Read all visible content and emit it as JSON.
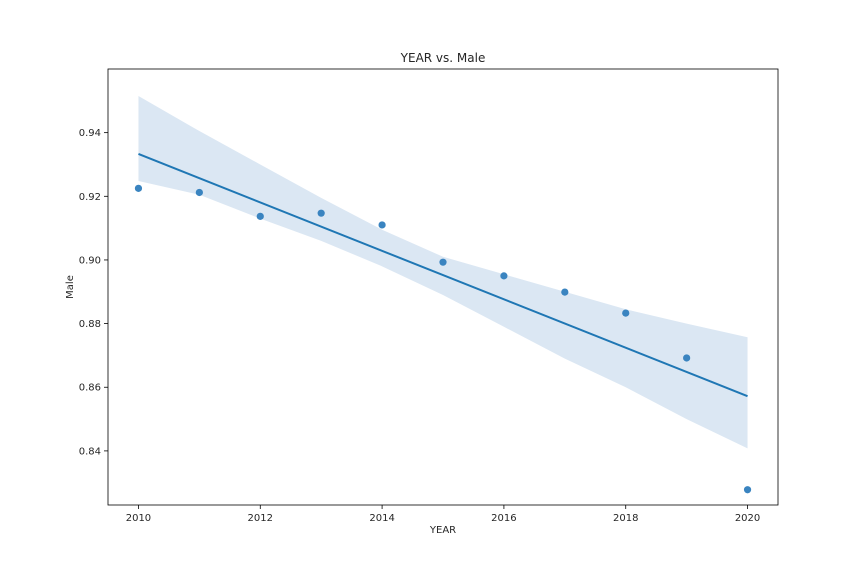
{
  "chart_data": {
    "type": "scatter",
    "title": "YEAR vs. Male",
    "xlabel": "YEAR",
    "ylabel": "Male",
    "xlim": [
      2009.5,
      2020.5
    ],
    "ylim": [
      0.823,
      0.96
    ],
    "xticks": [
      2010,
      2012,
      2014,
      2016,
      2018,
      2020
    ],
    "yticks": [
      0.84,
      0.86,
      0.88,
      0.9,
      0.92,
      0.94
    ],
    "ytick_labels": [
      "0.84",
      "0.86",
      "0.88",
      "0.90",
      "0.92",
      "0.94"
    ],
    "grid": false,
    "points": {
      "x": [
        2010,
        2011,
        2012,
        2013,
        2014,
        2015,
        2016,
        2017,
        2018,
        2019,
        2020
      ],
      "y": [
        0.9225,
        0.9212,
        0.9137,
        0.9147,
        0.911,
        0.8993,
        0.895,
        0.8899,
        0.8833,
        0.8692,
        0.8278
      ]
    },
    "regression": {
      "x": [
        2010,
        2020
      ],
      "y": [
        0.9333,
        0.8572
      ]
    },
    "confidence_band": {
      "x": [
        2010,
        2011,
        2012,
        2013,
        2014,
        2015,
        2016,
        2017,
        2018,
        2019,
        2020
      ],
      "upper": [
        0.9515,
        0.9405,
        0.93,
        0.9195,
        0.9095,
        0.901,
        0.8955,
        0.89,
        0.8845,
        0.88,
        0.8757
      ],
      "lower": [
        0.9248,
        0.9205,
        0.913,
        0.906,
        0.898,
        0.889,
        0.879,
        0.869,
        0.86,
        0.85,
        0.8408
      ]
    },
    "colors": {
      "points": "#3a84c0",
      "line": "#1f77b4",
      "band": "#dbe7f3",
      "axes": "#000000"
    }
  }
}
